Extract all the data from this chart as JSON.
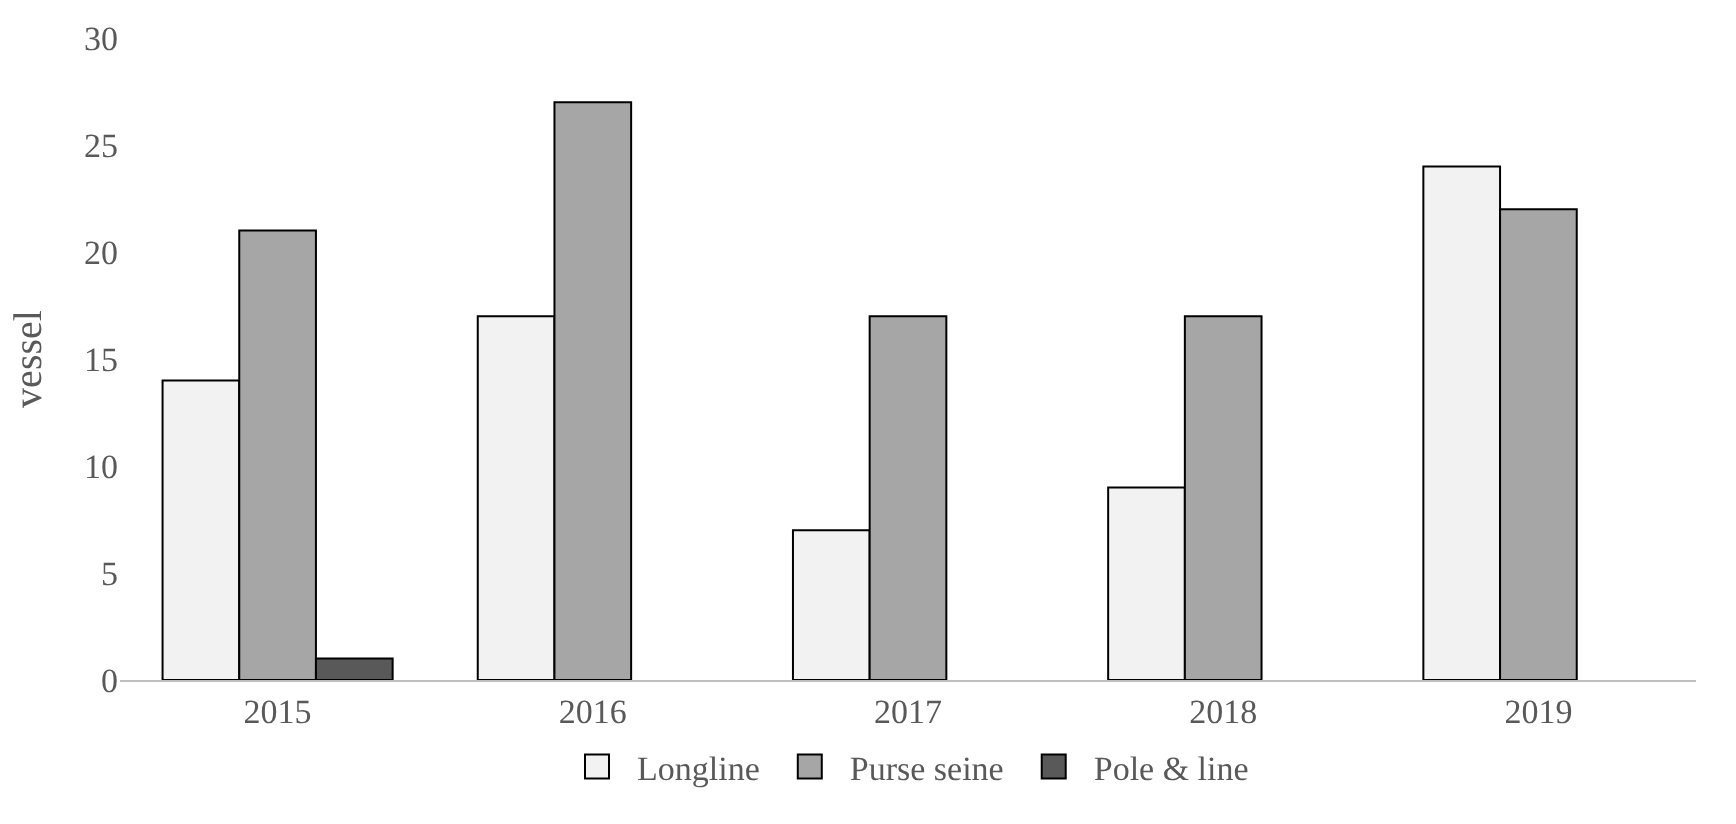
{
  "chart_data": {
    "type": "bar",
    "ylabel": "vessel",
    "categories": [
      "2015",
      "2016",
      "2017",
      "2018",
      "2019"
    ],
    "series": [
      {
        "name": "Longline",
        "color": "#f2f2f2",
        "values": [
          14,
          17,
          7,
          9,
          24
        ]
      },
      {
        "name": "Purse seine",
        "color": "#a6a6a6",
        "values": [
          21,
          27,
          17,
          17,
          22
        ]
      },
      {
        "name": "Pole & line",
        "color": "#595959",
        "values": [
          1,
          null,
          null,
          null,
          null
        ]
      }
    ],
    "ylim": [
      0,
      30
    ],
    "yticks": [
      0,
      5,
      10,
      15,
      20,
      25,
      30
    ],
    "legend": "bottom"
  }
}
